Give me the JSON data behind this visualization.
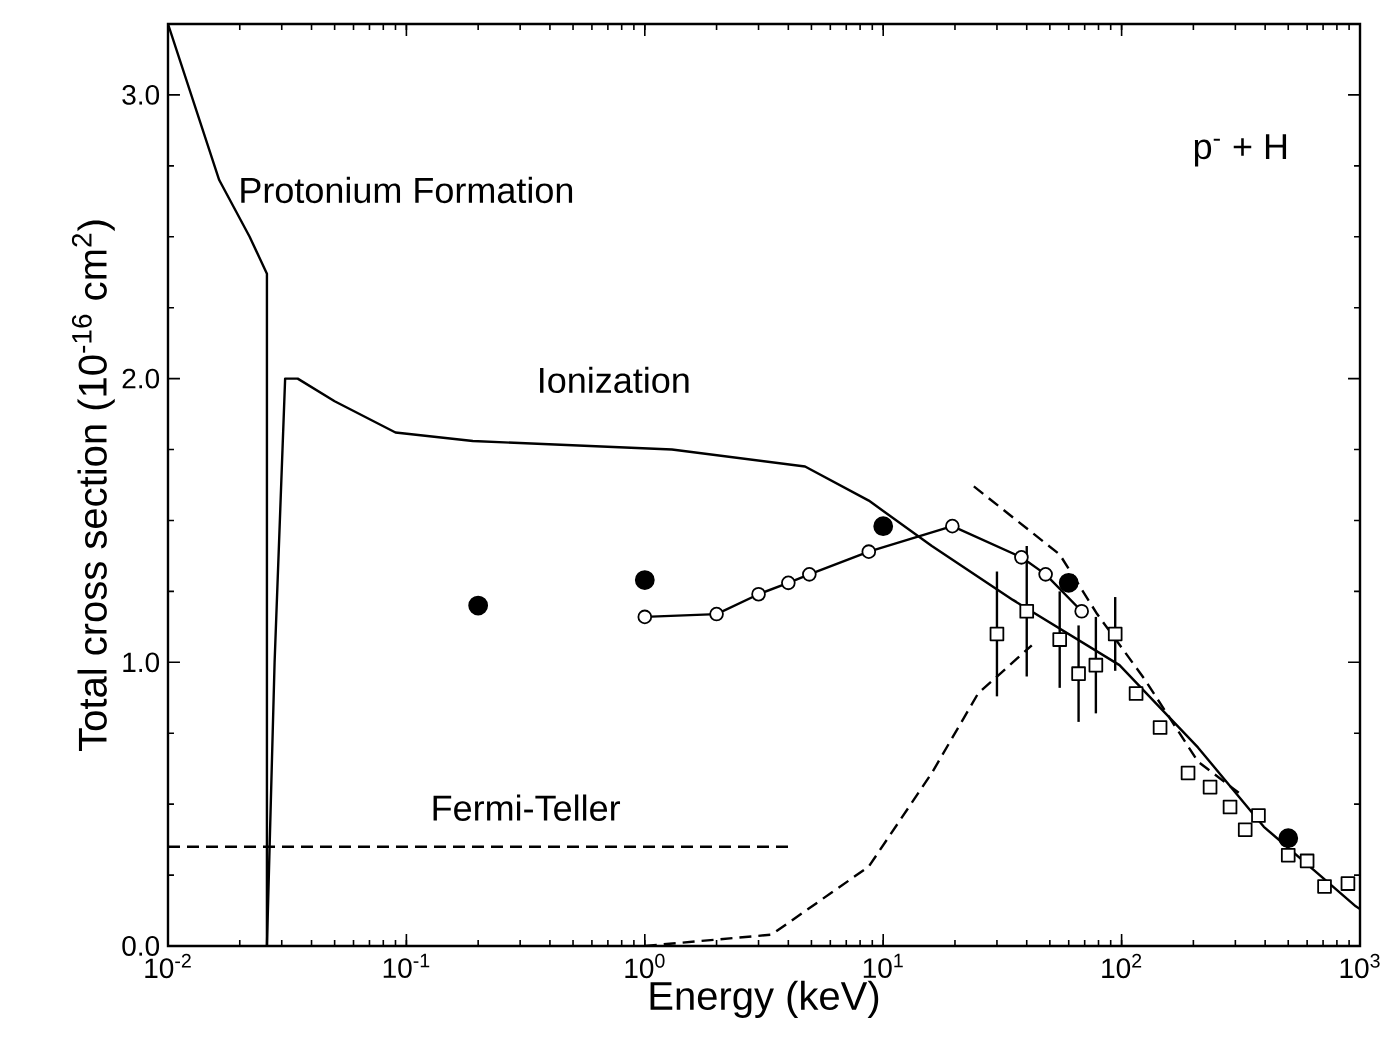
{
  "chart_data": {
    "type": "line",
    "xlabel": "Energy (keV)",
    "ylabel": "Total cross section (10$^{-16}$ cm$^{2}$)",
    "log": "x",
    "xlim": [
      0.01,
      1000
    ],
    "ylim": [
      0,
      3.25
    ],
    "xticks": [
      {
        "value": 0.01,
        "label": "10$^{-2}$"
      },
      {
        "value": 0.1,
        "label": "10$^{-1}$"
      },
      {
        "value": 1,
        "label": "10$^{0}$"
      },
      {
        "value": 10,
        "label": "10$^{1}$"
      },
      {
        "value": 100,
        "label": "10$^{2}$"
      },
      {
        "value": 1000,
        "label": "10$^{3}$"
      }
    ],
    "yticks": [
      {
        "value": 0,
        "label": "0.0"
      },
      {
        "value": 1,
        "label": "1.0"
      },
      {
        "value": 2,
        "label": "2.0"
      },
      {
        "value": 3,
        "label": "3.0"
      }
    ],
    "grid": false,
    "series": [
      {
        "color": "#000000",
        "line_style": "solid",
        "marker": "none",
        "x": [
          0.01,
          0.0164,
          0.022,
          0.026,
          0.026
        ],
        "values": [
          3.25,
          2.7,
          2.5,
          2.37,
          0
        ]
      },
      {
        "color": "#000000",
        "line_style": "solid",
        "marker": "none",
        "x": [
          0.026,
          0.028,
          0.031,
          0.035,
          0.05,
          0.09,
          0.19,
          1.3,
          4.7,
          8.7,
          16,
          35,
          98,
          209,
          395,
          960,
          1000
        ],
        "values": [
          0,
          1.0,
          2.0,
          2.0,
          1.92,
          1.81,
          1.78,
          1.75,
          1.69,
          1.57,
          1.41,
          1.22,
          0.99,
          0.7,
          0.42,
          0.14,
          0.13
        ]
      },
      {
        "color": "#000000",
        "line_style": "dashed",
        "marker": "none",
        "x": [
          0.01,
          4
        ],
        "values": [
          0.35,
          0.35
        ]
      },
      {
        "color": "#000000",
        "line_style": "dashed",
        "marker": "none",
        "x": [
          1,
          3.4,
          8.7,
          16,
          25,
          42
        ],
        "values": [
          0,
          0.04,
          0.28,
          0.61,
          0.89,
          1.06
        ]
      },
      {
        "color": "#000000",
        "line_style": "dashed",
        "marker": "none",
        "x": [
          24,
          55,
          79,
          125,
          209,
          310
        ],
        "values": [
          1.62,
          1.38,
          1.17,
          0.94,
          0.65,
          0.54
        ]
      },
      {
        "color": "#000000",
        "line_style": "solid",
        "marker": "circle",
        "x": [
          1,
          2,
          3,
          4,
          4.9,
          8.7,
          19.5,
          38,
          48,
          68
        ],
        "values": [
          1.16,
          1.17,
          1.24,
          1.28,
          1.31,
          1.39,
          1.48,
          1.37,
          1.31,
          1.18
        ]
      },
      {
        "type": "scatter",
        "color": "#000000",
        "marker": "circle",
        "x": [
          0.2,
          1,
          10,
          60,
          500
        ],
        "values": [
          1.2,
          1.29,
          1.48,
          1.28,
          0.38
        ]
      },
      {
        "type": "scatter",
        "color": "#000000",
        "marker": "square",
        "x": [
          30,
          40,
          55,
          66,
          78,
          94,
          115,
          145,
          190,
          235,
          285,
          330,
          375,
          500,
          600,
          710,
          890
        ],
        "values": [
          1.1,
          1.18,
          1.08,
          0.96,
          0.99,
          1.1,
          0.89,
          0.77,
          0.61,
          0.56,
          0.49,
          0.41,
          0.46,
          0.32,
          0.3,
          0.21,
          0.22
        ],
        "errors": [
          0.22,
          0.23,
          0.17,
          0.17,
          0.17,
          0.13,
          null,
          null,
          null,
          null,
          null,
          null,
          null,
          null,
          null,
          null,
          null
        ]
      }
    ],
    "annotations": [
      "Protonium Formation",
      "Ionization",
      "Fermi-Teller",
      "p$^{-}$ + H"
    ]
  }
}
